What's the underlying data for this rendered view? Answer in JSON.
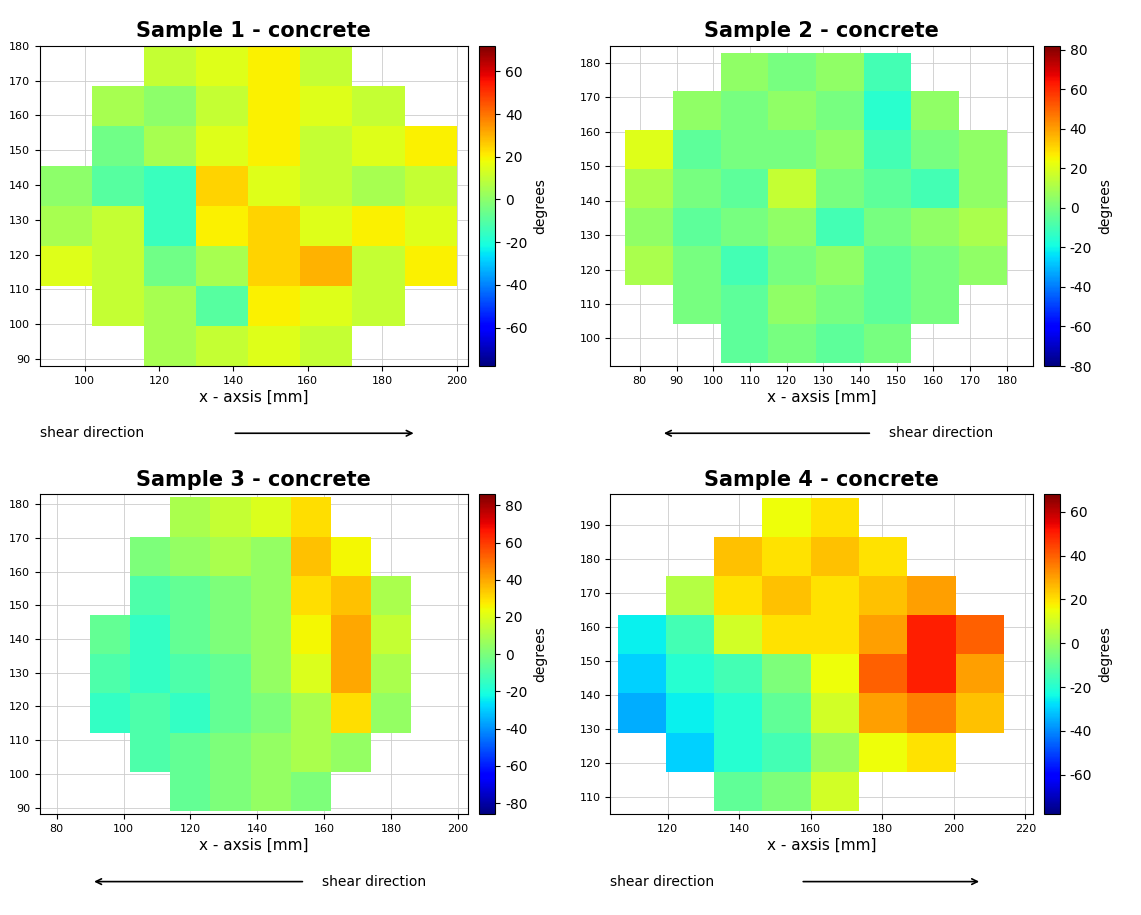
{
  "chart_data": [
    {
      "type": "heatmap",
      "title": "Sample 1 - concrete",
      "x_label": "x - axsis [mm]",
      "colorbar_label": "degrees",
      "annotation": "shear direction",
      "grid": true,
      "xlim": [
        88,
        203
      ],
      "ylim": [
        88,
        180
      ],
      "xticks": [
        100,
        120,
        140,
        160,
        180,
        200
      ],
      "yticks": [
        90,
        100,
        110,
        120,
        130,
        140,
        150,
        160,
        170,
        180
      ],
      "colorbar_range": [
        -78,
        72
      ],
      "colorbar_ticks": [
        -60,
        -40,
        -20,
        0,
        20,
        40,
        60
      ],
      "x_edges": [
        88,
        102,
        116,
        130,
        144,
        158,
        172,
        186,
        200
      ],
      "y_edges": [
        88,
        99.5,
        111,
        122.5,
        134,
        145.5,
        157,
        168.5,
        180
      ],
      "cells": [
        [
          null,
          null,
          5,
          10,
          15,
          10,
          null,
          null
        ],
        [
          null,
          10,
          5,
          -10,
          20,
          15,
          10,
          null
        ],
        [
          15,
          10,
          -5,
          5,
          25,
          30,
          10,
          20
        ],
        [
          5,
          10,
          -15,
          20,
          25,
          15,
          20,
          15
        ],
        [
          0,
          -10,
          -15,
          25,
          15,
          10,
          5,
          10
        ],
        [
          null,
          -5,
          5,
          15,
          20,
          10,
          15,
          20
        ],
        [
          null,
          5,
          0,
          10,
          20,
          15,
          10,
          null
        ],
        [
          null,
          null,
          10,
          15,
          20,
          10,
          null,
          null
        ]
      ]
    },
    {
      "type": "heatmap",
      "title": "Sample 2 - concrete",
      "x_label": "x - axsis [mm]",
      "colorbar_label": "degrees",
      "annotation": "shear direction",
      "grid": true,
      "xlim": [
        72,
        187
      ],
      "ylim": [
        92,
        185
      ],
      "xticks": [
        80,
        90,
        100,
        110,
        120,
        130,
        140,
        150,
        160,
        170,
        180
      ],
      "yticks": [
        100,
        110,
        120,
        130,
        140,
        150,
        160,
        170,
        180
      ],
      "colorbar_range": [
        -80,
        82
      ],
      "colorbar_ticks": [
        -80,
        -60,
        -40,
        -20,
        0,
        20,
        40,
        60,
        80
      ],
      "x_edges": [
        76,
        89,
        102,
        115,
        128,
        141,
        154,
        167,
        180
      ],
      "y_edges": [
        93,
        104.25,
        115.5,
        126.75,
        138,
        149.25,
        160.5,
        171.75,
        183
      ],
      "cells": [
        [
          null,
          null,
          -5,
          0,
          -5,
          0,
          null,
          null
        ],
        [
          null,
          0,
          -5,
          5,
          0,
          -5,
          0,
          null
        ],
        [
          10,
          0,
          -10,
          0,
          5,
          -5,
          0,
          5
        ],
        [
          5,
          -5,
          0,
          5,
          -10,
          0,
          5,
          10
        ],
        [
          10,
          0,
          -5,
          15,
          0,
          -5,
          -10,
          5
        ],
        [
          20,
          -5,
          0,
          0,
          5,
          -10,
          0,
          5
        ],
        [
          null,
          5,
          0,
          5,
          0,
          -15,
          5,
          null
        ],
        [
          null,
          null,
          5,
          0,
          5,
          -10,
          null,
          null
        ]
      ]
    },
    {
      "type": "heatmap",
      "title": "Sample 3 - concrete",
      "x_label": "x - axsis [mm]",
      "colorbar_label": "degrees",
      "annotation": "shear direction",
      "grid": true,
      "xlim": [
        75,
        203
      ],
      "ylim": [
        88,
        183
      ],
      "xticks": [
        80,
        100,
        120,
        140,
        160,
        180,
        200
      ],
      "yticks": [
        90,
        100,
        110,
        120,
        130,
        140,
        150,
        160,
        170,
        180
      ],
      "colorbar_range": [
        -86,
        86
      ],
      "colorbar_ticks": [
        -80,
        -60,
        -40,
        -20,
        0,
        20,
        40,
        60,
        80
      ],
      "x_edges": [
        90,
        102,
        114,
        126,
        138,
        150,
        162,
        174,
        186
      ],
      "y_edges": [
        89,
        100.625,
        112.25,
        123.875,
        135.5,
        147.125,
        158.75,
        170.375,
        182
      ],
      "cells": [
        [
          null,
          null,
          -5,
          0,
          5,
          0,
          null,
          null
        ],
        [
          null,
          -10,
          -5,
          0,
          5,
          10,
          5,
          null
        ],
        [
          -15,
          -10,
          -15,
          -5,
          0,
          10,
          30,
          5
        ],
        [
          -10,
          -15,
          -10,
          -5,
          5,
          20,
          40,
          10
        ],
        [
          -5,
          -15,
          -5,
          0,
          5,
          25,
          40,
          15
        ],
        [
          null,
          -10,
          -5,
          0,
          5,
          30,
          35,
          10
        ],
        [
          null,
          0,
          5,
          10,
          5,
          35,
          25,
          null
        ],
        [
          null,
          null,
          10,
          15,
          20,
          30,
          null,
          null
        ]
      ]
    },
    {
      "type": "heatmap",
      "title": "Sample 4 - concrete",
      "x_label": "x - axsis [mm]",
      "colorbar_label": "degrees",
      "annotation": "shear direction",
      "grid": true,
      "xlim": [
        104,
        222
      ],
      "ylim": [
        105,
        199
      ],
      "xticks": [
        120,
        140,
        160,
        180,
        200,
        220
      ],
      "yticks": [
        110,
        120,
        130,
        140,
        150,
        160,
        170,
        180,
        190
      ],
      "colorbar_range": [
        -78,
        68
      ],
      "colorbar_ticks": [
        -60,
        -40,
        -20,
        0,
        20,
        40,
        60
      ],
      "x_edges": [
        106,
        119.5,
        133,
        146.5,
        160,
        173.5,
        187,
        200.5,
        214
      ],
      "y_edges": [
        106,
        117.5,
        129,
        140.5,
        152,
        163.5,
        175,
        186.5,
        198
      ],
      "cells": [
        [
          null,
          null,
          -10,
          -5,
          10,
          null,
          null,
          null
        ],
        [
          null,
          -30,
          -20,
          -15,
          0,
          15,
          20,
          null
        ],
        [
          -35,
          -25,
          -20,
          -10,
          10,
          30,
          35,
          25
        ],
        [
          -30,
          -20,
          -15,
          -5,
          15,
          40,
          50,
          30
        ],
        [
          -25,
          -15,
          10,
          20,
          20,
          30,
          50,
          40
        ],
        [
          null,
          5,
          20,
          25,
          20,
          25,
          30,
          null
        ],
        [
          null,
          null,
          25,
          20,
          25,
          20,
          null,
          null
        ],
        [
          null,
          null,
          null,
          15,
          20,
          null,
          null,
          null
        ]
      ]
    }
  ]
}
